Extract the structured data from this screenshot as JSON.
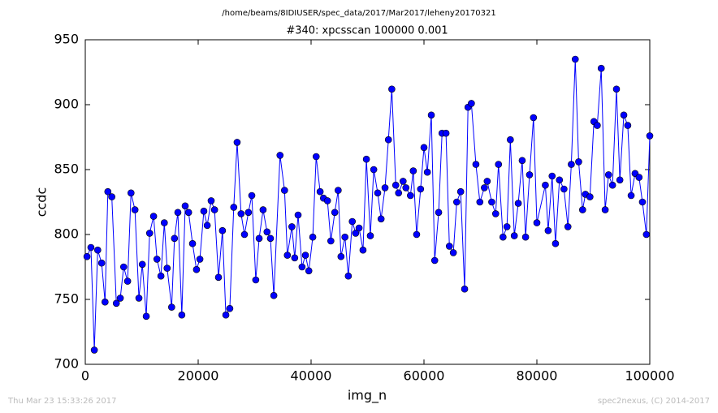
{
  "chart_data": {
    "type": "line",
    "suptitle": "/home/beams/8IDIUSER/spec_data/2017/Mar2017/leheny20170321",
    "title": "#340: xpcsscan 100000 0.001",
    "xlabel": "img_n",
    "ylabel": "ccdc",
    "footer_left": "Thu Mar 23 15:33:26 2017",
    "footer_right": "spec2nexus, (C) 2014-2017",
    "color": "#0000ff",
    "marker_edge": "#000000",
    "xlim": [
      0,
      100000
    ],
    "xticks": [
      0,
      20000,
      40000,
      60000,
      80000,
      100000
    ],
    "ylim": [
      700,
      950
    ],
    "yticks": [
      700,
      750,
      800,
      850,
      900,
      950
    ],
    "x": [
      300,
      1000,
      1600,
      2200,
      2900,
      3500,
      4000,
      4700,
      5500,
      6200,
      6800,
      7500,
      8100,
      8800,
      9500,
      10100,
      10800,
      11400,
      12100,
      12700,
      13400,
      14000,
      14500,
      15300,
      15800,
      16400,
      17100,
      17700,
      18300,
      19000,
      19700,
      20300,
      21000,
      21600,
      22300,
      22900,
      23600,
      24300,
      24900,
      25600,
      26300,
      26900,
      27600,
      28200,
      28900,
      29500,
      30200,
      30800,
      31500,
      32200,
      32800,
      33400,
      34500,
      35300,
      35800,
      36600,
      37100,
      37700,
      38400,
      39000,
      39600,
      40300,
      40900,
      41600,
      42200,
      42900,
      43500,
      44200,
      44800,
      45300,
      46000,
      46600,
      47300,
      47900,
      48500,
      49200,
      49800,
      50500,
      51100,
      51800,
      52400,
      53100,
      53700,
      54300,
      55000,
      55500,
      56300,
      56800,
      57600,
      58100,
      58700,
      59400,
      60000,
      60600,
      61300,
      61900,
      62600,
      63200,
      63900,
      64500,
      65200,
      65800,
      66500,
      67200,
      67800,
      68400,
      69200,
      69900,
      70700,
      71200,
      72000,
      72700,
      73200,
      74000,
      74700,
      75300,
      76000,
      76700,
      77400,
      78000,
      78700,
      79400,
      80000,
      81500,
      82000,
      82700,
      83300,
      84000,
      84800,
      85500,
      86100,
      86800,
      87400,
      88100,
      88600,
      89400,
      90100,
      90700,
      91400,
      92100,
      92700,
      93400,
      94100,
      94700,
      95400,
      96100,
      96700,
      97400,
      98100,
      98700,
      99400,
      100000
    ],
    "values": [
      783,
      790,
      711,
      788,
      778,
      748,
      833,
      829,
      747,
      751,
      775,
      764,
      832,
      819,
      751,
      777,
      737,
      801,
      814,
      781,
      768,
      809,
      774,
      744,
      797,
      817,
      738,
      822,
      817,
      793,
      773,
      781,
      818,
      807,
      826,
      819,
      767,
      803,
      738,
      743,
      821,
      871,
      816,
      800,
      817,
      830,
      765,
      797,
      819,
      802,
      797,
      753,
      861,
      834,
      784,
      806,
      782,
      815,
      775,
      784,
      772,
      798,
      860,
      833,
      828,
      826,
      795,
      817,
      834,
      783,
      798,
      768,
      810,
      801,
      805,
      788,
      858,
      799,
      850,
      832,
      812,
      836,
      873,
      912,
      838,
      832,
      841,
      836,
      830,
      849,
      800,
      835,
      867,
      848,
      892,
      780,
      817,
      878,
      878,
      791,
      786,
      825,
      833,
      758,
      898,
      901,
      854,
      825,
      836,
      841,
      825,
      816,
      854,
      798,
      806,
      873,
      799,
      824,
      857,
      798,
      846,
      890,
      809,
      838,
      803,
      845,
      793,
      842,
      835,
      806,
      854,
      935,
      856,
      819,
      831,
      829,
      887,
      884,
      928,
      819,
      846,
      838,
      912,
      842,
      892,
      884,
      830,
      847,
      844,
      825,
      800,
      876
    ]
  }
}
